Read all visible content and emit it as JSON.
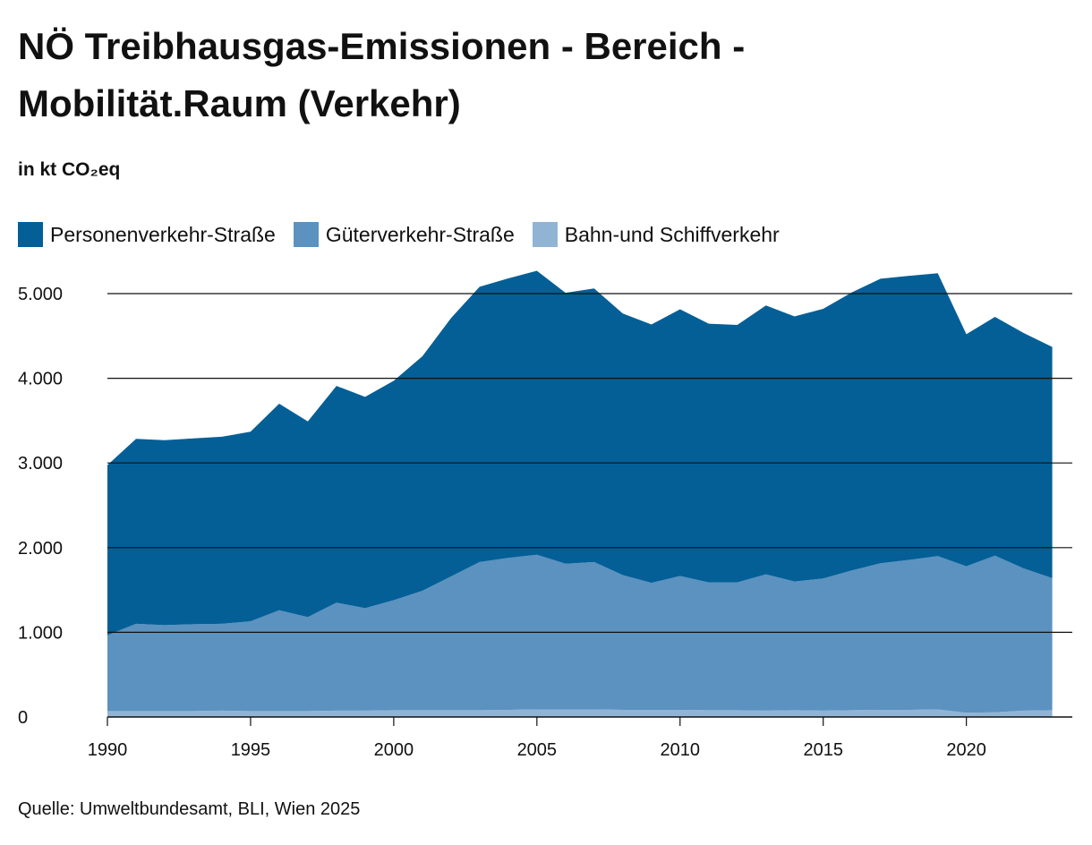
{
  "title": "NÖ Treibhausgas-Emissionen - Bereich - Mobilität.Raum (Verkehr)",
  "unit": "in kt CO₂eq",
  "source": "Quelle: Umweltbundesamt, BLI, Wien 2025",
  "chart_data": {
    "type": "area",
    "stacked": true,
    "x": [
      1990,
      1991,
      1992,
      1993,
      1994,
      1995,
      1996,
      1997,
      1998,
      1999,
      2000,
      2001,
      2002,
      2003,
      2004,
      2005,
      2006,
      2007,
      2008,
      2009,
      2010,
      2011,
      2012,
      2013,
      2014,
      2015,
      2016,
      2017,
      2018,
      2019,
      2020,
      2021,
      2022,
      2023
    ],
    "series": [
      {
        "name": "Bahn-und Schiffverkehr",
        "color": "#91b4d4",
        "values": [
          70,
          70,
          70,
          70,
          75,
          70,
          70,
          70,
          75,
          75,
          80,
          80,
          80,
          80,
          85,
          90,
          90,
          90,
          85,
          85,
          85,
          80,
          80,
          75,
          80,
          75,
          80,
          85,
          85,
          90,
          50,
          55,
          75,
          80
        ]
      },
      {
        "name": "Güterverkehr-Straße",
        "color": "#5b92c0",
        "values": [
          895,
          1030,
          1015,
          1025,
          1025,
          1060,
          1190,
          1110,
          1275,
          1210,
          1300,
          1410,
          1580,
          1750,
          1795,
          1825,
          1720,
          1740,
          1590,
          1500,
          1580,
          1510,
          1510,
          1610,
          1520,
          1560,
          1650,
          1730,
          1770,
          1810,
          1730,
          1850,
          1680,
          1560
        ]
      },
      {
        "name": "Personenverkehr-Straße",
        "color": "#045f97",
        "values": [
          2010,
          2185,
          2185,
          2195,
          2210,
          2240,
          2440,
          2310,
          2560,
          2495,
          2590,
          2770,
          3050,
          3250,
          3300,
          3355,
          3200,
          3230,
          3090,
          3050,
          3150,
          3055,
          3040,
          3175,
          3130,
          3185,
          3285,
          3360,
          3355,
          3340,
          2740,
          2820,
          2780,
          2730
        ]
      }
    ],
    "legend_order": [
      "Personenverkehr-Straße",
      "Güterverkehr-Straße",
      "Bahn-und Schiffverkehr"
    ],
    "xticks": [
      1990,
      1995,
      2000,
      2005,
      2010,
      2015,
      2020
    ],
    "yticks": [
      0,
      1000,
      2000,
      3000,
      4000,
      5000
    ],
    "ytick_labels": [
      "0",
      "1.000",
      "2.000",
      "3.000",
      "4.000",
      "5.000"
    ],
    "xlim": [
      1990,
      2023.7
    ],
    "ylim": [
      0,
      5000
    ],
    "grid": "horizontal"
  }
}
